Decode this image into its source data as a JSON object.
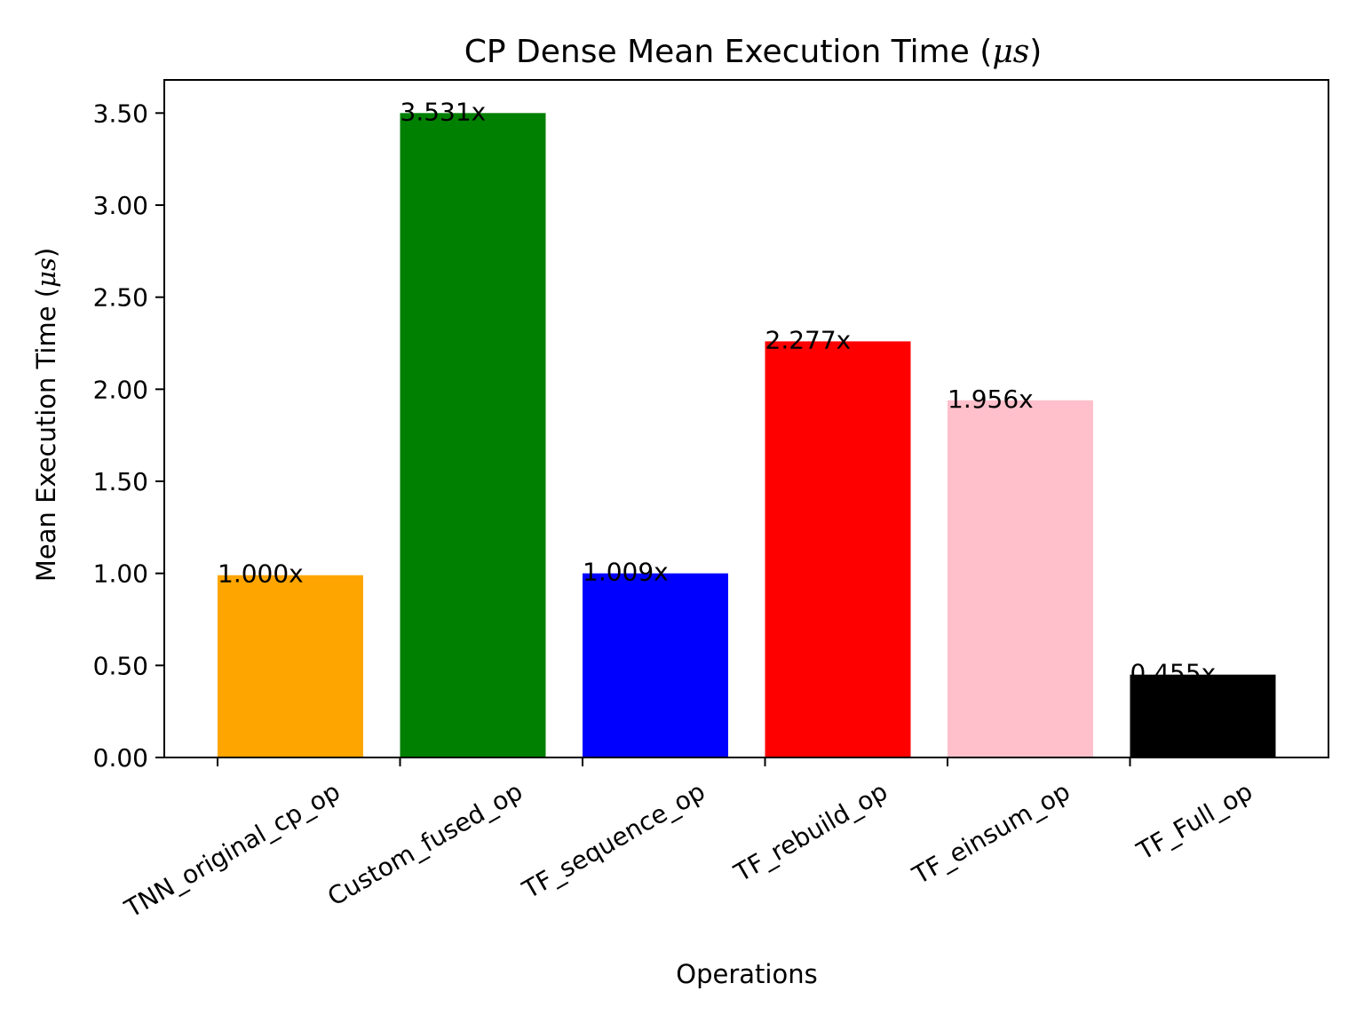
{
  "chart_data": {
    "type": "bar",
    "title": {
      "main": "CP Dense Mean Execution Time (",
      "unit": "μs",
      "close": ")"
    },
    "xlabel": "Operations",
    "ylabel": {
      "main": "Mean Execution Time (",
      "unit": "μs",
      "close": ")"
    },
    "categories": [
      "TNN_original_cp_op",
      "Custom_fused_op",
      "TF_sequence_op",
      "TF_rebuild_op",
      "TF_einsum_op",
      "TF_Full_op"
    ],
    "values": [
      0.99,
      3.5,
      1.0,
      2.26,
      1.94,
      0.45
    ],
    "labels": [
      "1.000x",
      "3.531x",
      "1.009x",
      "2.277x",
      "1.956x",
      "0.455x"
    ],
    "colors": [
      "#ffa500",
      "#008000",
      "#0000ff",
      "#ff0000",
      "#ffc0cb",
      "#000000"
    ],
    "yticks": [
      "0.00",
      "0.50",
      "1.00",
      "1.50",
      "2.00",
      "2.50",
      "3.00",
      "3.50"
    ],
    "ylim": [
      0,
      3.68
    ],
    "grid": false,
    "legend": "none"
  }
}
